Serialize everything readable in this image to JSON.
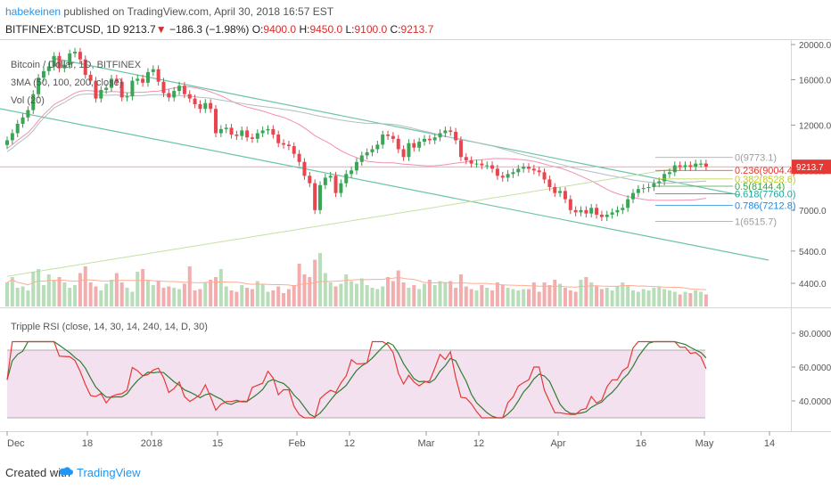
{
  "header": {
    "username": "habekeinen",
    "published": "published on TradingView.com, April 30, 2018 16:57 EST",
    "symbol": "BITFINEX:BTCUSD, 1D",
    "last": "9213.7",
    "change": "−186.3 (−1.98%)",
    "o_label": "O:",
    "o_value": "9400.0",
    "h_label": "H:",
    "h_value": "9450.0",
    "l_label": "L:",
    "l_value": "9100.0",
    "c_label": "C:",
    "c_value": "9213.7"
  },
  "chart_data": [
    {
      "type": "candlestick",
      "title": "Bitcoin / Dollar, 1D, BITFINEX",
      "indicators": [
        "3MA (50, 100, 200, close)",
        "Vol (20)"
      ],
      "y_ticks": [
        "20000.0",
        "16000.0",
        "12000.0",
        "9000.0",
        "7000.0",
        "5400.0",
        "4400.0"
      ],
      "price_label": "9213.7",
      "x_ticks": [
        "Dec",
        "18",
        "2018",
        "15",
        "Feb",
        "12",
        "Mar",
        "12",
        "Apr",
        "16",
        "May",
        "14"
      ],
      "fib_levels": [
        {
          "label": "0(9773.1)",
          "value": 9773.1,
          "color": "#9e9e9e"
        },
        {
          "label": "0.236(9004.4)",
          "value": 9004.4,
          "color": "#e53935"
        },
        {
          "label": "0.382(8528.6)",
          "value": 8528.6,
          "color": "#c0ca33"
        },
        {
          "label": "0.5(8144.4)",
          "value": 8144.4,
          "color": "#43a047"
        },
        {
          "label": "0.618(7760.0)",
          "value": 7760.0,
          "color": "#26a69a"
        },
        {
          "label": "0.786(7212.8)",
          "value": 7212.8,
          "color": "#1e88e5"
        },
        {
          "label": "1(6515.7)",
          "value": 6515.7,
          "color": "#9e9e9e"
        }
      ],
      "closes": [
        10900,
        11400,
        12100,
        12600,
        13200,
        14600,
        16200,
        16900,
        17400,
        18600,
        17200,
        17600,
        18900,
        19100,
        18200,
        16500,
        15900,
        14200,
        15000,
        15200,
        16100,
        15800,
        14300,
        14400,
        15900,
        16100,
        15700,
        16800,
        17100,
        15800,
        14700,
        14300,
        14900,
        15400,
        14600,
        14200,
        13700,
        13300,
        13800,
        13300,
        11400,
        11700,
        11800,
        11300,
        11200,
        11600,
        11100,
        11000,
        11400,
        11600,
        11700,
        11300,
        10700,
        10600,
        10500,
        10000,
        9500,
        8700,
        8300,
        7000,
        8200,
        8600,
        8700,
        7800,
        8300,
        8800,
        9000,
        9500,
        9900,
        10100,
        10300,
        10600,
        11300,
        11200,
        11000,
        10300,
        9800,
        10700,
        10400,
        10800,
        11000,
        10900,
        11100,
        11400,
        11600,
        11500,
        10900,
        9800,
        9600,
        9400,
        9400,
        9300,
        9300,
        9100,
        8700,
        8600,
        8800,
        8900,
        9100,
        9200,
        9100,
        9000,
        8900,
        8500,
        8100,
        7800,
        7900,
        7500,
        7000,
        6900,
        7000,
        6850,
        7100,
        6800,
        6700,
        6800,
        6900,
        7000,
        7100,
        7500,
        7800,
        8000,
        8050,
        8100,
        8300,
        8400,
        8800,
        8900,
        9300,
        9200,
        9300,
        9200,
        9400,
        9400,
        9213.7
      ],
      "volumes": [
        18,
        22,
        14,
        15,
        12,
        26,
        28,
        16,
        24,
        20,
        22,
        18,
        14,
        16,
        25,
        30,
        18,
        15,
        12,
        17,
        20,
        25,
        18,
        14,
        11,
        26,
        28,
        20,
        16,
        19,
        14,
        15,
        14,
        13,
        17,
        30,
        12,
        13,
        18,
        20,
        22,
        28,
        15,
        12,
        11,
        16,
        14,
        13,
        19,
        17,
        11,
        12,
        15,
        10,
        13,
        16,
        32,
        24,
        22,
        35,
        40,
        25,
        18,
        15,
        17,
        24,
        19,
        17,
        21,
        16,
        14,
        13,
        15,
        22,
        19,
        27,
        18,
        14,
        16,
        13,
        17,
        20,
        16,
        19,
        18,
        19,
        14,
        24,
        15,
        13,
        12,
        16,
        14,
        12,
        18,
        16,
        14,
        13,
        12,
        13,
        13,
        18,
        11,
        18,
        16,
        20,
        17,
        14,
        12,
        11,
        20,
        22,
        18,
        15,
        13,
        14,
        12,
        15,
        18,
        16,
        12,
        11,
        13,
        12,
        14,
        15,
        13,
        12,
        11,
        9,
        11,
        10,
        12,
        11,
        9
      ],
      "rsi_title": "Tripple RSI (close, 14, 30, 14, 240, 14, D, 30)",
      "rsi_ticks": [
        "80.0000",
        "60.0000",
        "40.0000"
      ],
      "rsi_upper": 70,
      "rsi_lower": 30
    }
  ],
  "footer": {
    "created_with": "Created with",
    "brand": "TradingView"
  }
}
